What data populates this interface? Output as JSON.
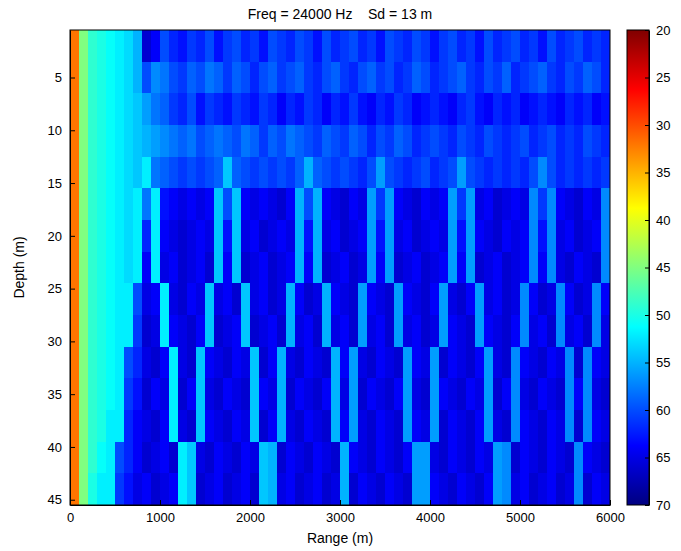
{
  "chart_data": {
    "type": "heatmap",
    "title": "Freq = 24000 Hz    Sd = 13 m",
    "xlabel": "Range (m)",
    "ylabel": "Depth (m)",
    "color": "jet_r",
    "xlim": [
      0,
      6000
    ],
    "ylim": [
      0.5,
      45.5
    ],
    "xticks": [
      0,
      1000,
      2000,
      3000,
      4000,
      5000,
      6000
    ],
    "yticks": [
      5,
      10,
      15,
      20,
      25,
      30,
      35,
      40,
      45
    ],
    "colorbar": {
      "range": [
        20,
        70
      ],
      "ticks": [
        20,
        25,
        30,
        35,
        40,
        45,
        50,
        55,
        60,
        65,
        70
      ]
    },
    "x": [
      50,
      150,
      250,
      350,
      450,
      550,
      650,
      750,
      850,
      950,
      1050,
      1150,
      1250,
      1350,
      1450,
      1550,
      1650,
      1750,
      1850,
      1950,
      2050,
      2150,
      2250,
      2350,
      2450,
      2550,
      2650,
      2750,
      2850,
      2950,
      3050,
      3150,
      3250,
      3350,
      3450,
      3550,
      3650,
      3750,
      3850,
      3950,
      4050,
      4150,
      4250,
      4350,
      4450,
      4550,
      4650,
      4750,
      4850,
      4950,
      5050,
      5150,
      5250,
      5350,
      5450,
      5550,
      5650,
      5750,
      5850,
      5950
    ],
    "y": [
      2,
      5,
      8,
      11,
      14,
      17,
      20,
      23,
      26,
      29,
      32,
      35,
      38,
      41,
      44
    ],
    "z": [
      [
        32,
        45,
        49,
        50,
        51,
        52,
        53,
        55,
        66,
        64,
        60,
        62,
        63,
        61,
        62,
        60,
        63,
        61,
        60,
        62,
        61,
        63,
        60,
        61,
        62,
        60,
        61,
        63,
        60,
        62,
        61,
        60,
        62,
        61,
        63,
        60,
        61,
        62,
        60,
        61,
        63,
        61,
        60,
        62,
        61,
        63,
        60,
        62,
        61,
        60,
        62,
        61,
        63,
        60,
        62,
        61,
        60,
        62,
        61,
        62
      ],
      [
        32,
        45,
        49,
        50,
        51,
        52,
        53,
        55,
        60,
        57,
        58,
        60,
        61,
        59,
        60,
        58,
        59,
        61,
        59,
        60,
        62,
        60,
        59,
        61,
        60,
        59,
        61,
        62,
        60,
        59,
        61,
        62,
        60,
        59,
        61,
        60,
        62,
        61,
        59,
        60,
        62,
        61,
        60,
        59,
        61,
        62,
        60,
        61,
        59,
        62,
        61,
        60,
        59,
        61,
        62,
        60,
        61,
        59,
        60,
        62
      ],
      [
        32,
        45,
        49,
        50,
        51,
        52,
        53,
        54,
        56,
        58,
        59,
        61,
        62,
        60,
        63,
        61,
        62,
        63,
        61,
        62,
        63,
        61,
        62,
        64,
        62,
        63,
        61,
        62,
        64,
        62,
        63,
        61,
        63,
        64,
        62,
        63,
        61,
        62,
        64,
        63,
        62,
        63,
        64,
        62,
        61,
        63,
        64,
        62,
        63,
        62,
        64,
        63,
        62,
        63,
        64,
        62,
        63,
        62,
        64,
        63
      ],
      [
        32,
        45,
        49,
        50,
        51,
        52,
        53,
        54,
        55,
        56,
        57,
        58,
        59,
        58,
        60,
        59,
        58,
        59,
        60,
        58,
        59,
        61,
        59,
        60,
        58,
        59,
        60,
        61,
        59,
        60,
        61,
        59,
        60,
        62,
        60,
        61,
        59,
        60,
        62,
        61,
        60,
        61,
        62,
        60,
        61,
        62,
        60,
        61,
        62,
        61,
        60,
        62,
        61,
        60,
        62,
        61,
        62,
        60,
        61,
        62
      ],
      [
        32,
        45,
        49,
        50,
        51,
        52,
        53,
        54,
        52,
        58,
        59,
        60,
        61,
        60,
        61,
        60,
        59,
        54,
        59,
        60,
        61,
        60,
        61,
        60,
        61,
        59,
        55,
        59,
        60,
        61,
        60,
        61,
        62,
        60,
        56,
        60,
        61,
        62,
        61,
        60,
        62,
        61,
        60,
        56,
        60,
        61,
        62,
        61,
        62,
        61,
        62,
        60,
        57,
        60,
        62,
        61,
        62,
        61,
        62,
        61
      ],
      [
        32,
        45,
        49,
        50,
        51,
        52,
        53,
        52,
        58,
        52,
        63,
        64,
        65,
        64,
        65,
        64,
        54,
        60,
        54,
        64,
        65,
        64,
        65,
        66,
        64,
        55,
        60,
        55,
        64,
        65,
        66,
        64,
        65,
        56,
        61,
        56,
        64,
        65,
        66,
        64,
        65,
        64,
        56,
        61,
        56,
        65,
        64,
        66,
        65,
        64,
        65,
        57,
        61,
        57,
        64,
        65,
        66,
        64,
        65,
        57
      ],
      [
        32,
        45,
        49,
        50,
        51,
        52,
        53,
        52,
        62,
        52,
        64,
        65,
        66,
        65,
        64,
        65,
        54,
        63,
        54,
        65,
        64,
        66,
        65,
        64,
        65,
        55,
        63,
        55,
        65,
        64,
        66,
        65,
        64,
        56,
        63,
        56,
        65,
        64,
        66,
        65,
        64,
        65,
        56,
        63,
        56,
        64,
        65,
        66,
        64,
        65,
        64,
        57,
        63,
        57,
        65,
        64,
        66,
        65,
        64,
        57
      ],
      [
        32,
        45,
        49,
        50,
        51,
        52,
        53,
        52,
        64,
        52,
        65,
        64,
        66,
        65,
        64,
        66,
        54,
        64,
        54,
        66,
        65,
        64,
        66,
        65,
        64,
        55,
        64,
        55,
        66,
        65,
        64,
        66,
        65,
        56,
        64,
        56,
        66,
        65,
        64,
        66,
        65,
        64,
        56,
        64,
        56,
        66,
        65,
        64,
        66,
        65,
        64,
        57,
        64,
        57,
        65,
        66,
        64,
        65,
        66,
        57
      ],
      [
        32,
        45,
        49,
        50,
        51,
        52,
        52,
        60,
        65,
        64,
        52,
        65,
        66,
        64,
        65,
        54,
        65,
        64,
        66,
        54,
        65,
        64,
        66,
        65,
        55,
        64,
        66,
        65,
        55,
        64,
        65,
        66,
        56,
        64,
        65,
        66,
        56,
        64,
        65,
        66,
        64,
        56,
        65,
        66,
        64,
        56,
        65,
        64,
        66,
        65,
        57,
        64,
        66,
        65,
        57,
        64,
        66,
        65,
        57,
        64
      ],
      [
        32,
        45,
        49,
        50,
        51,
        52,
        52,
        61,
        66,
        65,
        52,
        64,
        65,
        66,
        64,
        54,
        66,
        65,
        64,
        54,
        66,
        65,
        64,
        66,
        55,
        65,
        64,
        66,
        55,
        65,
        64,
        66,
        56,
        65,
        64,
        66,
        56,
        65,
        64,
        66,
        65,
        56,
        64,
        65,
        66,
        56,
        64,
        65,
        66,
        64,
        57,
        65,
        64,
        66,
        57,
        65,
        64,
        66,
        57,
        65
      ],
      [
        32,
        45,
        49,
        50,
        51,
        52,
        60,
        62,
        65,
        66,
        64,
        52,
        65,
        66,
        54,
        64,
        65,
        66,
        64,
        65,
        54,
        66,
        64,
        55,
        65,
        66,
        64,
        65,
        66,
        55,
        64,
        56,
        65,
        66,
        64,
        65,
        66,
        56,
        64,
        65,
        56,
        66,
        64,
        65,
        66,
        64,
        56,
        65,
        66,
        57,
        64,
        65,
        66,
        64,
        65,
        57,
        66,
        57,
        64,
        65
      ],
      [
        32,
        45,
        49,
        50,
        51,
        52,
        61,
        63,
        66,
        64,
        65,
        52,
        66,
        64,
        54,
        65,
        66,
        64,
        65,
        66,
        54,
        64,
        65,
        55,
        66,
        64,
        65,
        66,
        64,
        55,
        65,
        56,
        66,
        64,
        65,
        66,
        64,
        56,
        65,
        66,
        56,
        64,
        65,
        66,
        64,
        65,
        56,
        66,
        64,
        57,
        65,
        66,
        64,
        65,
        66,
        57,
        64,
        57,
        65,
        66
      ],
      [
        32,
        45,
        49,
        50,
        52,
        52,
        62,
        64,
        65,
        66,
        64,
        52,
        65,
        66,
        54,
        64,
        65,
        66,
        64,
        65,
        54,
        66,
        64,
        55,
        65,
        66,
        64,
        65,
        66,
        55,
        64,
        56,
        65,
        66,
        64,
        65,
        66,
        56,
        64,
        65,
        56,
        66,
        64,
        65,
        66,
        64,
        56,
        65,
        66,
        57,
        64,
        65,
        66,
        64,
        65,
        57,
        66,
        57,
        64,
        65
      ],
      [
        32,
        45,
        49,
        51,
        52,
        60,
        62,
        64,
        66,
        65,
        64,
        66,
        52,
        54,
        65,
        66,
        64,
        65,
        66,
        64,
        65,
        54,
        55,
        66,
        64,
        65,
        66,
        64,
        65,
        66,
        55,
        64,
        65,
        66,
        64,
        65,
        66,
        64,
        56,
        56,
        65,
        66,
        64,
        65,
        66,
        64,
        65,
        56,
        57,
        66,
        64,
        65,
        66,
        64,
        65,
        66,
        57,
        64,
        65,
        66
      ],
      [
        32,
        45,
        50,
        52,
        52,
        61,
        63,
        65,
        64,
        66,
        65,
        64,
        52,
        54,
        66,
        65,
        64,
        66,
        65,
        64,
        66,
        54,
        55,
        65,
        64,
        66,
        65,
        64,
        66,
        65,
        55,
        66,
        64,
        65,
        66,
        64,
        65,
        66,
        56,
        56,
        64,
        65,
        66,
        64,
        65,
        66,
        64,
        56,
        57,
        65,
        64,
        66,
        65,
        64,
        66,
        65,
        57,
        66,
        64,
        65
      ]
    ]
  }
}
